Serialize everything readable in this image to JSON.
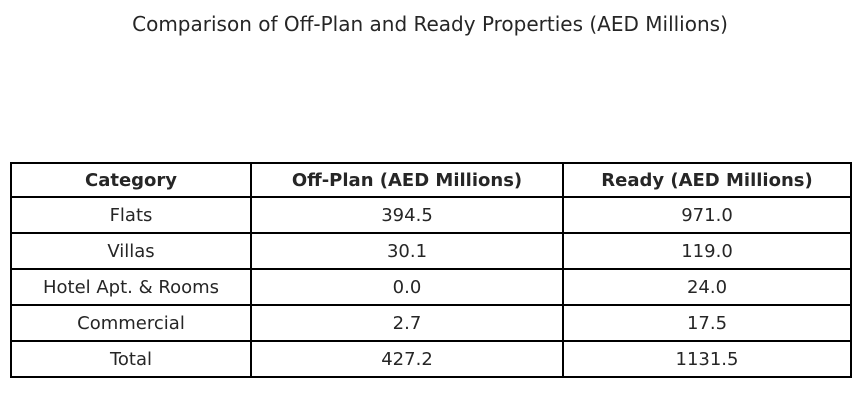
{
  "title": "Comparison of Off-Plan and Ready Properties (AED Millions)",
  "table": {
    "columns": [
      "Category",
      "Off-Plan (AED Millions)",
      "Ready (AED Millions)"
    ],
    "rows": [
      {
        "category": "Flats",
        "offplan": "394.5",
        "ready": "971.0"
      },
      {
        "category": "Villas",
        "offplan": "30.1",
        "ready": "119.0"
      },
      {
        "category": "Hotel Apt. & Rooms",
        "offplan": "0.0",
        "ready": "24.0"
      },
      {
        "category": "Commercial",
        "offplan": "2.7",
        "ready": "17.5"
      },
      {
        "category": "Total",
        "offplan": "427.2",
        "ready": "1131.5"
      }
    ]
  },
  "colors": {
    "background": "#ffffff",
    "border": "#000000",
    "text": "#262626"
  },
  "chart_data": {
    "type": "table",
    "title": "Comparison of Off-Plan and Ready Properties (AED Millions)",
    "columns": [
      "Category",
      "Off-Plan (AED Millions)",
      "Ready (AED Millions)"
    ],
    "categories": [
      "Flats",
      "Villas",
      "Hotel Apt. & Rooms",
      "Commercial",
      "Total"
    ],
    "series": [
      {
        "name": "Off-Plan (AED Millions)",
        "values": [
          394.5,
          30.1,
          0.0,
          2.7,
          427.2
        ]
      },
      {
        "name": "Ready (AED Millions)",
        "values": [
          971.0,
          119.0,
          24.0,
          17.5,
          1131.5
        ]
      }
    ],
    "layout": {
      "grid": true,
      "header_bold": true,
      "cell_text_align": "center"
    }
  }
}
